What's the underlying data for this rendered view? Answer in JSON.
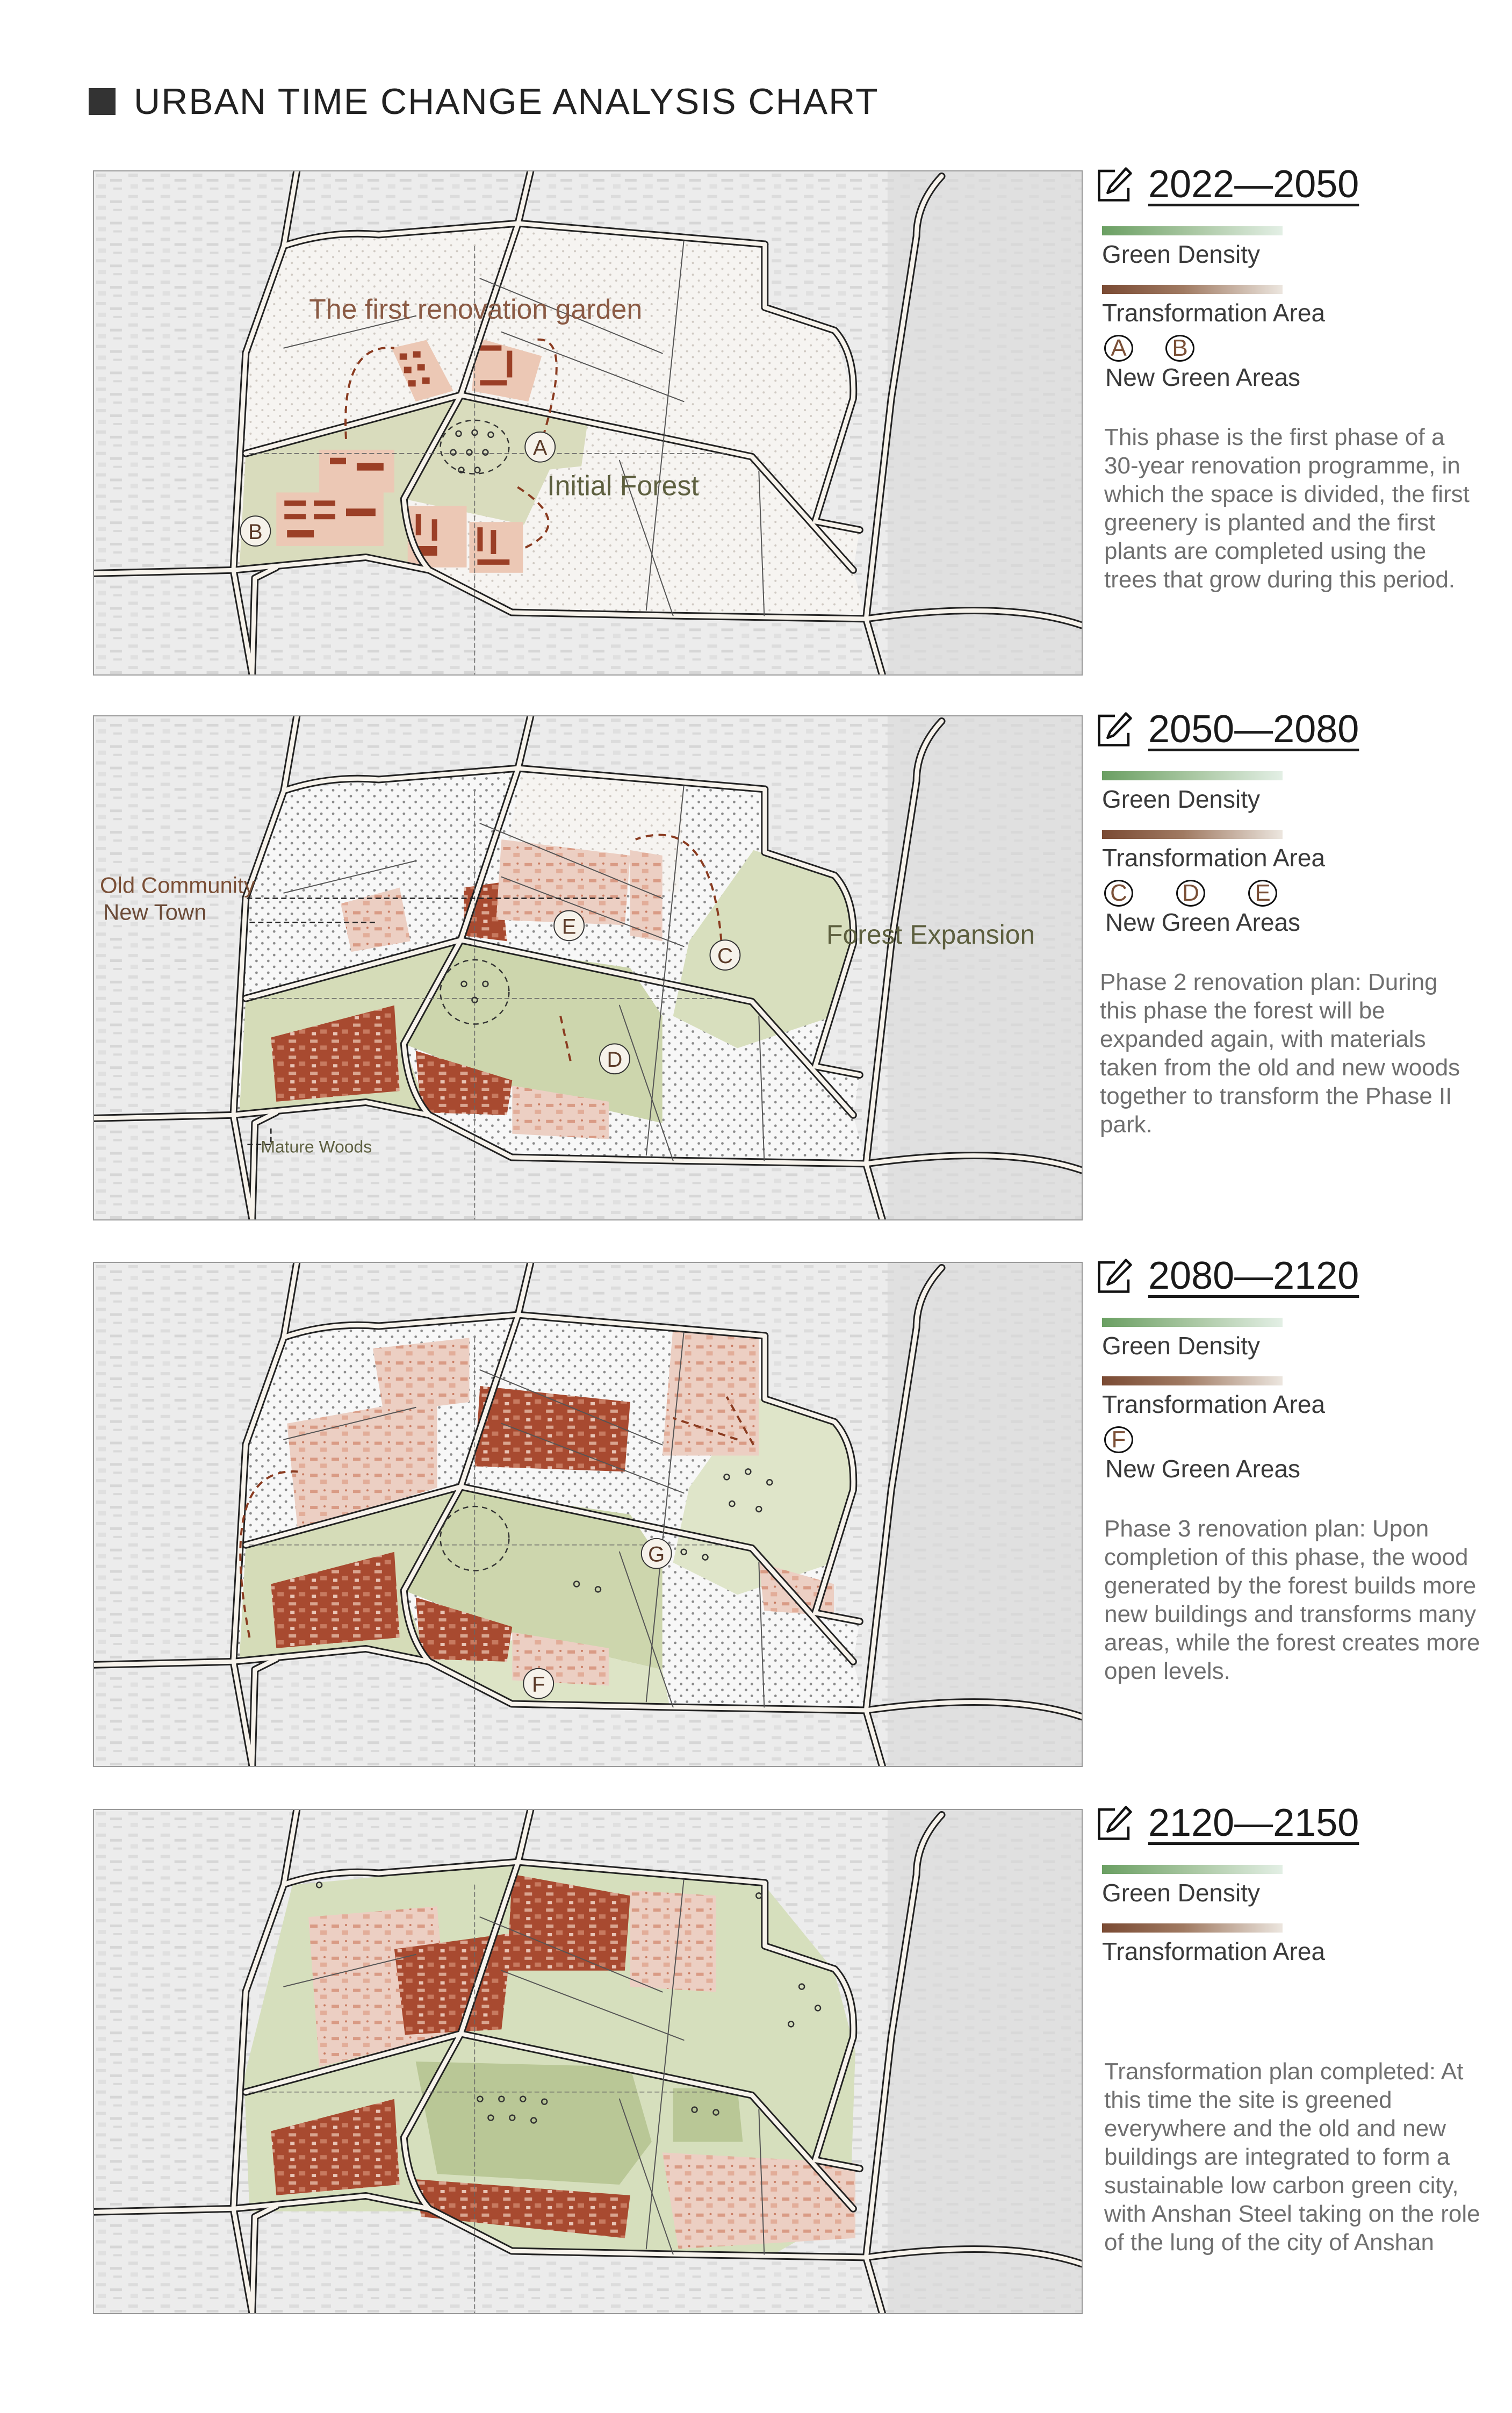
{
  "page": {
    "title": "URBAN TIME CHANGE ANALYSIS CHART"
  },
  "colors": {
    "green_density": "#6a9f62",
    "transformation": "#7a4a33",
    "building": "#9b3f26",
    "green_area": "#d5dcb8"
  },
  "panels": [
    {
      "period": "2022—2050",
      "green_density": "Green Density",
      "transformation_area": "Transformation Area",
      "letters": [
        "A",
        "B"
      ],
      "new_green_areas": "New Green Areas",
      "description": "This phase is the first phase of a 30-year renovation programme, in which the space is divided, the first greenery is planted and the first plants are completed using the trees that grow during this period.",
      "map_labels": {
        "garden": "The first renovation garden",
        "forest": "Initial Forest",
        "a": "A",
        "b": "B"
      }
    },
    {
      "period": "2050—2080",
      "green_density": "Green Density",
      "transformation_area": "Transformation Area",
      "letters": [
        "C",
        "D",
        "E"
      ],
      "new_green_areas": "New Green Areas",
      "description": "Phase 2 renovation plan: During this phase the forest will be expanded again, with materials taken from the old and new woods together to transform the Phase II park.",
      "map_labels": {
        "old_community": "Old Community",
        "new_town": "New Town",
        "forest_expansion": "Forest Expansion",
        "mature_woods": "Mature Woods",
        "c": "C",
        "d": "D",
        "e": "E"
      }
    },
    {
      "period": "2080—2120",
      "green_density": "Green Density",
      "transformation_area": "Transformation Area",
      "letters": [
        "F"
      ],
      "new_green_areas": "New Green Areas",
      "description": "Phase 3 renovation plan: Upon completion of this phase, the wood generated by the forest builds more new buildings and transforms many areas, while the forest creates more open levels.",
      "map_labels": {
        "f": "F",
        "g": "G"
      }
    },
    {
      "period": "2120—2150",
      "green_density": "Green Density",
      "transformation_area": "Transformation Area",
      "description": "Transformation plan completed: At this time the site is greened everywhere and the old and new buildings are integrated to form a sustainable low carbon green city, with Anshan Steel taking on the role of the lung of the city of Anshan"
    }
  ]
}
